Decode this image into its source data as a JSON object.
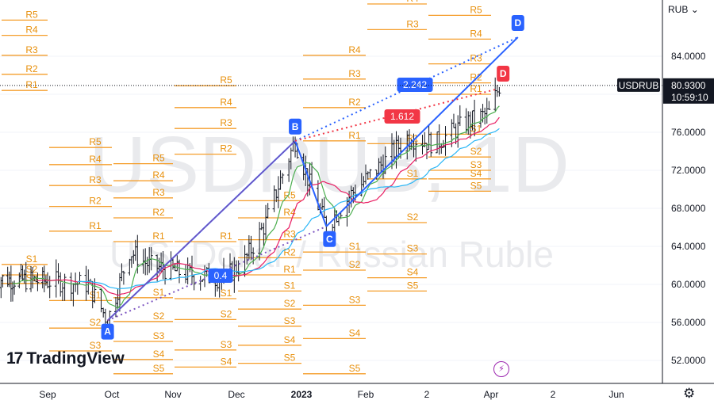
{
  "chart_data": {
    "type": "candlestick",
    "symbol": "USDRUB",
    "interval": "D",
    "description": "U.S. Dollar / Russian Ruble",
    "currency_button": "RUB",
    "last_price": "80.9300",
    "countdown": "10:59:10",
    "y_ticks": [
      "52.0000",
      "56.0000",
      "60.0000",
      "64.0000",
      "68.0000",
      "72.0000",
      "76.0000",
      "80.0000",
      "84.0000"
    ],
    "x_ticks": [
      "Sep",
      "Oct",
      "Nov",
      "Dec",
      "2023",
      "Feb",
      "2",
      "Apr",
      "2",
      "Jun"
    ],
    "ylim": [
      50.5,
      89.5
    ],
    "pattern": {
      "points": [
        {
          "label": "A",
          "date": "2022-09-29",
          "price": 56.2
        },
        {
          "label": "B",
          "date": "2022-12-29",
          "price": 75.1
        },
        {
          "label": "C",
          "date": "2023-01-13",
          "price": 66.1
        },
        {
          "label": "D",
          "date": "2023-04-14",
          "price": 86.0
        }
      ],
      "ratios": [
        "0.4",
        "1.612",
        "2.242"
      ]
    },
    "pivots": [
      {
        "labels": [
          "R5",
          "R4",
          "R3",
          "R2",
          "R1",
          "S1",
          "S2",
          "S3"
        ],
        "values": [
          87.8,
          86.2,
          84.1,
          82.1,
          80.4,
          62.1,
          61.0,
          60.1
        ]
      },
      {
        "labels": [
          "R5",
          "R4",
          "R3",
          "R2",
          "R1",
          "S1",
          "S2",
          "S3"
        ],
        "values": [
          74.4,
          72.6,
          70.4,
          68.2,
          65.6,
          58.3,
          55.4,
          53.0
        ]
      },
      {
        "labels": [
          "R5",
          "R4",
          "R3",
          "R2",
          "R1",
          "S1",
          "S2",
          "S3",
          "S4",
          "S5"
        ],
        "values": [
          72.7,
          70.9,
          69.1,
          67.0,
          64.5,
          58.6,
          56.1,
          54.0,
          52.1,
          50.6
        ]
      },
      {
        "labels": [
          "R5",
          "R4",
          "R3",
          "R2",
          "R1",
          "S1",
          "S2",
          "S3",
          "S4"
        ],
        "values": [
          80.9,
          78.6,
          76.4,
          73.7,
          64.5,
          58.5,
          56.3,
          53.1,
          51.3
        ]
      },
      {
        "labels": [
          "R5",
          "R4",
          "R3",
          "R2",
          "R1",
          "S1",
          "S2",
          "S3",
          "S4",
          "S5"
        ],
        "values": [
          68.8,
          67.0,
          64.7,
          62.8,
          61.0,
          59.3,
          57.4,
          55.6,
          53.6,
          51.7
        ]
      },
      {
        "labels": [
          "R4",
          "R3",
          "R2",
          "R1",
          "S1",
          "S2",
          "S3",
          "S4",
          "S5"
        ],
        "values": [
          84.1,
          81.6,
          78.6,
          75.1,
          63.4,
          61.5,
          57.8,
          54.3,
          50.6
        ]
      },
      {
        "labels": [
          "R4",
          "R3",
          "R1",
          "S1",
          "S2",
          "S3",
          "S4",
          "S5"
        ],
        "values": [
          89.5,
          86.8,
          74.8,
          71.1,
          66.5,
          63.2,
          60.7,
          59.3
        ]
      },
      {
        "labels": [
          "R5",
          "R4",
          "R3",
          "R2",
          "R1",
          "S1",
          "S2",
          "S3",
          "S4",
          "S5"
        ],
        "values": [
          88.3,
          85.8,
          83.2,
          81.2,
          80.0,
          75.8,
          73.4,
          72.0,
          71.1,
          69.8
        ]
      }
    ],
    "watermark": {
      "symbol": "USDRUB, 1D",
      "description": "U.S. Dollar / Russian Ruble"
    },
    "brand": "TradingView"
  }
}
